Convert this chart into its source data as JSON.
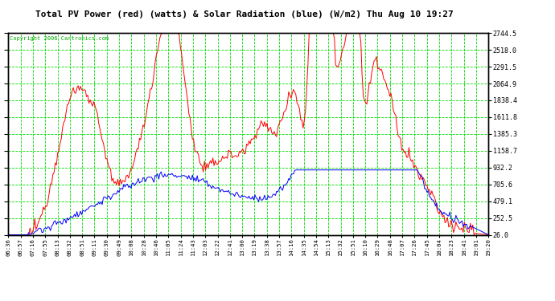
{
  "title": "Total PV Power (red) (watts) & Solar Radiation (blue) (W/m2) Thu Aug 10 19:27",
  "copyright": "Copyright 2006 Cartronics.com",
  "bg_color": "#ffffff",
  "plot_bg": "#ffffff",
  "title_color": "#000000",
  "grid_color": "#00dd00",
  "yticks": [
    26.0,
    252.5,
    479.1,
    705.6,
    932.2,
    1158.7,
    1385.3,
    1611.8,
    1838.4,
    2064.9,
    2291.5,
    2518.0,
    2744.5
  ],
  "ytick_labels": [
    "26.0",
    "252.5",
    "479.1",
    "705.6",
    "932.2",
    "1158.7",
    "1385.3",
    "1611.8",
    "1838.4",
    "2064.9",
    "2291.5",
    "2518.0",
    "2744.5"
  ],
  "ymin": 26.0,
  "ymax": 2744.5,
  "xtick_labels": [
    "06:36",
    "06:57",
    "07:16",
    "07:55",
    "08:13",
    "08:32",
    "08:51",
    "09:11",
    "09:30",
    "09:49",
    "10:08",
    "10:28",
    "10:46",
    "11:05",
    "11:24",
    "11:43",
    "12:03",
    "12:22",
    "12:41",
    "13:00",
    "13:19",
    "13:38",
    "13:57",
    "14:16",
    "14:35",
    "14:54",
    "15:13",
    "15:32",
    "15:51",
    "16:10",
    "16:29",
    "16:48",
    "17:07",
    "17:26",
    "17:45",
    "18:04",
    "18:23",
    "18:41",
    "19:01",
    "19:20"
  ],
  "line_red_color": "#ff0000",
  "line_blue_color": "#0000ff",
  "tick_color": "#000000",
  "border_color": "#000000",
  "copyright_color": "#00aa00"
}
